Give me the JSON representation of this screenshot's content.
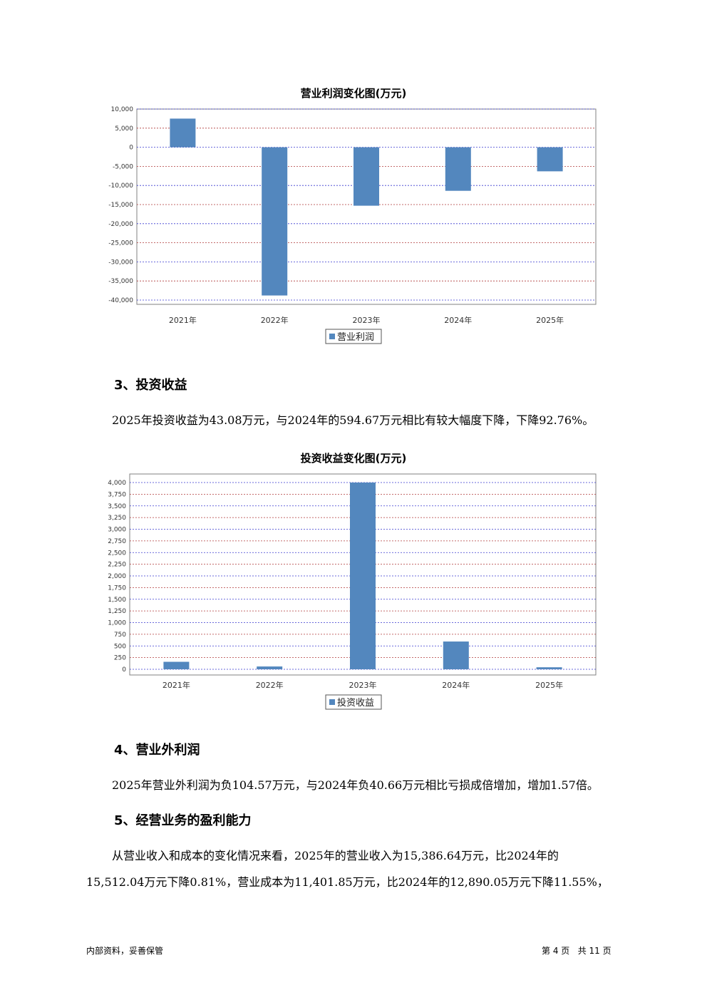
{
  "charts": [
    {
      "title": "营业利润变化图(万元)",
      "chart_data": {
        "type": "bar",
        "title": "营业利润变化图(万元)",
        "categories": [
          "2021年",
          "2022年",
          "2023年",
          "2024年",
          "2025年"
        ],
        "series": [
          {
            "name": "营业利润",
            "values": [
              7500,
              -38800,
              -15300,
              -11400,
              -6300
            ]
          }
        ],
        "ylim": [
          -40000,
          10000
        ],
        "yticks": [
          10000,
          5000,
          0,
          -5000,
          -10000,
          -15000,
          -20000,
          -25000,
          -30000,
          -35000,
          -40000
        ],
        "ytick_labels": [
          "10,000",
          "5,000",
          "0",
          "-5,000",
          "-10,000",
          "-15,000",
          "-20,000",
          "-25,000",
          "-30,000",
          "-35,000",
          "-40,000"
        ],
        "grid": true,
        "legend": "bottom",
        "bar_color": "#5387be"
      }
    },
    {
      "title": "投资收益变化图(万元)",
      "chart_data": {
        "type": "bar",
        "title": "投资收益变化图(万元)",
        "categories": [
          "2021年",
          "2022年",
          "2023年",
          "2024年",
          "2025年"
        ],
        "series": [
          {
            "name": "投资收益",
            "values": [
              160,
              60,
              4000,
              594.67,
              43.08
            ]
          }
        ],
        "ylim": [
          0,
          4000
        ],
        "yticks": [
          4000,
          3750,
          3500,
          3250,
          3000,
          2750,
          2500,
          2250,
          2000,
          1750,
          1500,
          1250,
          1000,
          750,
          500,
          250,
          0
        ],
        "ytick_labels": [
          "4,000",
          "3,750",
          "3,500",
          "3,250",
          "3,000",
          "2,750",
          "2,500",
          "2,250",
          "2,000",
          "1,750",
          "1,500",
          "1,250",
          "1,000",
          "750",
          "500",
          "250",
          "0"
        ],
        "grid": true,
        "legend": "bottom",
        "bar_color": "#5387be"
      }
    }
  ],
  "sections": {
    "s3_heading": "3、投资收益",
    "s3_text": "2025年投资收益为43.08万元，与2024年的594.67万元相比有较大幅度下降，下降92.76%。",
    "s4_heading": "4、营业外利润",
    "s4_text": "2025年营业外利润为负104.57万元，与2024年负40.66万元相比亏损成倍增加，增加1.57倍。",
    "s5_heading": "5、经营业务的盈利能力",
    "s5_text_line1": "从营业收入和成本的变化情况来看，2025年的营业收入为15,386.64万元，比2024年的",
    "s5_text_line2": "15,512.04万元下降0.81%，营业成本为11,401.85万元，比2024年的12,890.05万元下降11.55%，"
  },
  "footer": {
    "left": "内部资料，妥善保管",
    "right": "第 4 页   共 11 页"
  },
  "colors": {
    "grid_blue": "#3a3ad0",
    "grid_red": "#b03a3a",
    "axis": "#808080"
  }
}
